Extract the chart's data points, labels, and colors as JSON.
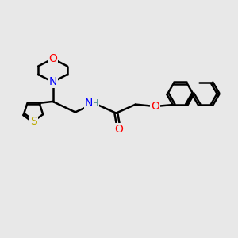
{
  "bg_color": "#e8e8e8",
  "bond_color": "#000000",
  "bond_width": 1.8,
  "atom_colors": {
    "O": "#ff0000",
    "N": "#0000ff",
    "S": "#bbaa00",
    "H": "#5a9898",
    "C": "#000000"
  },
  "font_size_atom": 10,
  "layout": {
    "xlim": [
      0,
      12
    ],
    "ylim": [
      0,
      10
    ]
  }
}
